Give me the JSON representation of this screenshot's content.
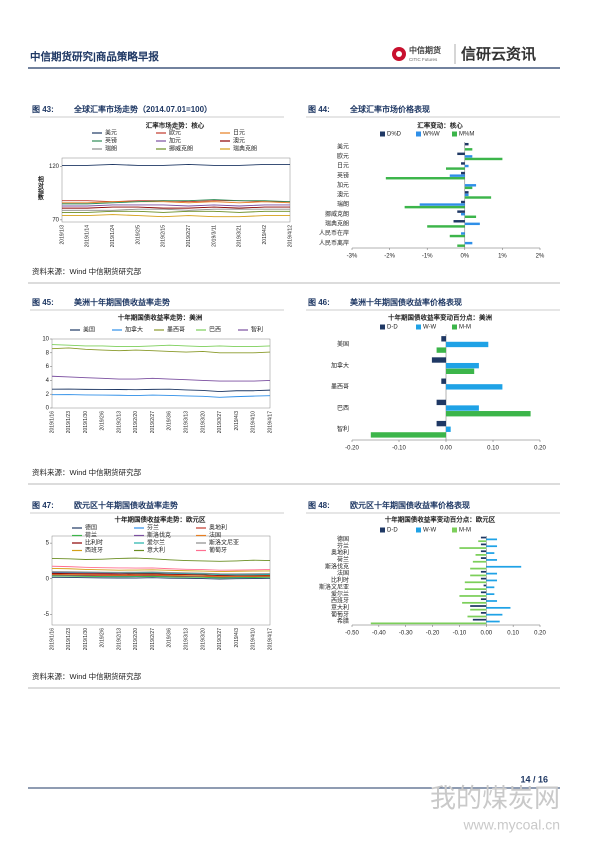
{
  "header": {
    "title": "中信期货研究|商品策略早报",
    "logo_cn": "中信期货",
    "logo_en": "CITIC Futures",
    "brand": "信研云资讯"
  },
  "figures": [
    {
      "label": "图 43:",
      "title": "全球汇率市场走势（2014.07.01=100）"
    },
    {
      "label": "图 44:",
      "title": "全球汇率市场价格表现"
    },
    {
      "label": "图 45:",
      "title": "美洲十年期国债收益率走势"
    },
    {
      "label": "图 46:",
      "title": "美洲十年期国债收益率价格表现"
    },
    {
      "label": "图 47:",
      "title": "欧元区十年期国债收益率走势"
    },
    {
      "label": "图 48:",
      "title": "欧元区十年期国债收益率价格表现"
    }
  ],
  "sources": [
    "资料来源：Wind 中信期货研究部",
    "资料来源：Wind 中信期货研究部",
    "资料来源：Wind 中信期货研究部"
  ],
  "chart_data": [
    {
      "type": "line",
      "title": "汇率市场走势：核心",
      "ylabel": "相对指数",
      "categories": [
        "2019/1/3",
        "2019/1/14",
        "2019/1/24",
        "2019/2/5",
        "2019/2/15",
        "2019/2/27",
        "2019/3/11",
        "2019/3/21",
        "2019/4/2",
        "2019/4/12"
      ],
      "ylim": [
        68,
        128
      ],
      "yticks": [
        70,
        120
      ],
      "series": [
        {
          "name": "美元",
          "color": "#1f3864",
          "values": [
            121,
            121,
            122,
            121,
            121,
            122,
            121,
            121,
            122,
            122
          ]
        },
        {
          "name": "欧元",
          "color": "#c0392b",
          "values": [
            88,
            88,
            87,
            88,
            88,
            87,
            88,
            88,
            87,
            87
          ]
        },
        {
          "name": "日元",
          "color": "#e67e22",
          "values": [
            86,
            86,
            87,
            87,
            87,
            86,
            87,
            86,
            87,
            86
          ]
        },
        {
          "name": "英镑",
          "color": "#2e8b57",
          "values": [
            85,
            85,
            86,
            87,
            88,
            88,
            89,
            88,
            88,
            87
          ]
        },
        {
          "name": "加元",
          "color": "#7b4fa0",
          "values": [
            83,
            83,
            84,
            84,
            84,
            83,
            84,
            83,
            84,
            84
          ]
        },
        {
          "name": "澳元",
          "color": "#8b0000",
          "values": [
            81,
            81,
            82,
            82,
            81,
            81,
            82,
            81,
            82,
            82
          ]
        },
        {
          "name": "瑞朗",
          "color": "#8c8c8c",
          "values": [
            79,
            79,
            79,
            80,
            80,
            79,
            80,
            80,
            80,
            80
          ]
        },
        {
          "name": "挪威克朗",
          "color": "#6b8e23",
          "values": [
            77,
            77,
            78,
            78,
            77,
            78,
            78,
            77,
            78,
            78
          ]
        },
        {
          "name": "瑞典克朗",
          "color": "#d4a017",
          "values": [
            74,
            74,
            75,
            74,
            73,
            74,
            73,
            73,
            74,
            74
          ]
        }
      ]
    },
    {
      "type": "hbar",
      "title": "汇率变动：核心",
      "categories": [
        "美元",
        "欧元",
        "日元",
        "英镑",
        "加元",
        "澳元",
        "瑞朗",
        "挪威克朗",
        "瑞典克朗",
        "人民币在岸",
        "人民币离岸"
      ],
      "xlim": [
        -3,
        2
      ],
      "xticks": [
        {
          "value": -3,
          "label": "-3%"
        },
        {
          "value": -2,
          "label": "-2%"
        },
        {
          "value": -1,
          "label": "-1%"
        },
        {
          "value": 0,
          "label": "0%"
        },
        {
          "value": 1,
          "label": "1%"
        },
        {
          "value": 2,
          "label": "2%"
        }
      ],
      "series": [
        {
          "name": "D%D",
          "color": "#1f3864",
          "values": [
            0.1,
            -0.2,
            -0.1,
            -0.1,
            0.0,
            0.1,
            -0.1,
            -0.2,
            -0.3,
            0.0,
            0.0
          ]
        },
        {
          "name": "W%W",
          "color": "#2f8fe8",
          "values": [
            0.0,
            0.2,
            0.1,
            -0.4,
            0.3,
            0.1,
            -1.2,
            -0.1,
            0.4,
            -0.1,
            0.2
          ]
        },
        {
          "name": "M%M",
          "color": "#3cb54a",
          "values": [
            0.2,
            1.0,
            -0.5,
            -2.1,
            0.2,
            0.7,
            -1.6,
            0.3,
            -1.0,
            -0.4,
            -0.2
          ]
        }
      ]
    },
    {
      "type": "line",
      "title": "十年期国债收益率走势：美洲",
      "categories": [
        "2019/1/16",
        "2019/1/23",
        "2019/1/30",
        "2019/2/6",
        "2019/2/13",
        "2019/2/20",
        "2019/2/27",
        "2019/3/6",
        "2019/3/13",
        "2019/3/20",
        "2019/3/27",
        "2019/4/3",
        "2019/4/10",
        "2019/4/17"
      ],
      "ylim": [
        0,
        10
      ],
      "yticks": [
        0,
        2,
        4,
        6,
        8,
        10
      ],
      "series": [
        {
          "name": "美国",
          "color": "#1f3864",
          "values": [
            2.72,
            2.74,
            2.7,
            2.69,
            2.68,
            2.65,
            2.7,
            2.72,
            2.62,
            2.54,
            2.38,
            2.5,
            2.5,
            2.59
          ]
        },
        {
          "name": "加拿大",
          "color": "#2f8fe8",
          "values": [
            1.93,
            1.95,
            1.9,
            1.88,
            1.85,
            1.8,
            1.88,
            1.82,
            1.75,
            1.7,
            1.55,
            1.65,
            1.72,
            1.78
          ]
        },
        {
          "name": "墨西哥",
          "color": "#8a9a2b",
          "values": [
            8.6,
            8.7,
            8.5,
            8.4,
            8.3,
            8.4,
            8.3,
            8.2,
            8.1,
            8.2,
            8.0,
            8.0,
            8.0,
            8.1
          ]
        },
        {
          "name": "巴西",
          "color": "#7ccf5a",
          "values": [
            9.2,
            9.1,
            9.0,
            9.0,
            8.9,
            8.9,
            9.0,
            9.1,
            9.0,
            8.9,
            9.0,
            8.9,
            8.9,
            9.0
          ]
        },
        {
          "name": "智利",
          "color": "#7b4fa0",
          "values": [
            4.6,
            4.5,
            4.4,
            4.3,
            4.2,
            4.2,
            4.3,
            4.2,
            4.1,
            4.0,
            3.9,
            3.9,
            3.9,
            4.0
          ]
        }
      ]
    },
    {
      "type": "hbar",
      "title": "十年期国债收益率变动百分点：美洲",
      "categories": [
        "美国",
        "加拿大",
        "墨西哥",
        "巴西",
        "智利"
      ],
      "xlim": [
        -0.2,
        0.2
      ],
      "xticks": [
        {
          "value": -0.2,
          "label": "-0.20"
        },
        {
          "value": -0.1,
          "label": "-0.10"
        },
        {
          "value": 0,
          "label": "0.00"
        },
        {
          "value": 0.1,
          "label": "0.10"
        },
        {
          "value": 0.2,
          "label": "0.20"
        }
      ],
      "series": [
        {
          "name": "D-D",
          "color": "#1f3864",
          "values": [
            -0.01,
            -0.03,
            -0.01,
            -0.02,
            -0.02
          ]
        },
        {
          "name": "W-W",
          "color": "#1fa2e6",
          "values": [
            0.09,
            0.07,
            0.12,
            0.07,
            0.01
          ]
        },
        {
          "name": "M-M",
          "color": "#3cb54a",
          "values": [
            -0.02,
            0.06,
            0.0,
            0.18,
            -0.16
          ]
        }
      ]
    },
    {
      "type": "line",
      "title": "十年期国债收益率走势：欧元区",
      "categories": [
        "2019/1/16",
        "2019/1/23",
        "2019/1/30",
        "2019/2/6",
        "2019/2/13",
        "2019/2/20",
        "2019/2/27",
        "2019/3/6",
        "2019/3/13",
        "2019/3/20",
        "2019/3/27",
        "2019/4/3",
        "2019/4/10",
        "2019/4/17"
      ],
      "ylim": [
        -6.5,
        6
      ],
      "yticks": [
        -5,
        0,
        5
      ],
      "series": [
        {
          "name": "德国",
          "color": "#1f3864",
          "values": [
            0.2,
            0.18,
            0.15,
            0.12,
            0.1,
            0.1,
            0.15,
            0.08,
            0.05,
            0.02,
            -0.05,
            0.0,
            0.02,
            0.05
          ]
        },
        {
          "name": "芬兰",
          "color": "#2f8fe8",
          "values": [
            0.45,
            0.42,
            0.4,
            0.35,
            0.33,
            0.35,
            0.38,
            0.3,
            0.28,
            0.25,
            0.18,
            0.2,
            0.22,
            0.25
          ]
        },
        {
          "name": "奥地利",
          "color": "#c0392b",
          "values": [
            0.55,
            0.52,
            0.48,
            0.45,
            0.42,
            0.45,
            0.48,
            0.4,
            0.36,
            0.33,
            0.25,
            0.28,
            0.3,
            0.33
          ]
        },
        {
          "name": "荷兰",
          "color": "#3cb54a",
          "values": [
            0.38,
            0.36,
            0.33,
            0.3,
            0.28,
            0.3,
            0.33,
            0.26,
            0.22,
            0.2,
            0.12,
            0.15,
            0.17,
            0.2
          ]
        },
        {
          "name": "斯洛伐克",
          "color": "#7b4fa0",
          "values": [
            0.85,
            0.88,
            0.85,
            0.82,
            0.8,
            0.78,
            0.8,
            0.75,
            0.72,
            0.7,
            0.62,
            0.6,
            0.62,
            0.65
          ]
        },
        {
          "name": "法国",
          "color": "#e67e22",
          "values": [
            0.65,
            0.62,
            0.58,
            0.55,
            0.52,
            0.55,
            0.58,
            0.5,
            0.45,
            0.4,
            0.32,
            0.35,
            0.38,
            0.4
          ]
        },
        {
          "name": "比利时",
          "color": "#8b0000",
          "values": [
            0.75,
            0.72,
            0.7,
            0.68,
            0.65,
            0.68,
            0.7,
            0.62,
            0.58,
            0.55,
            0.45,
            0.48,
            0.5,
            0.52
          ]
        },
        {
          "name": "爱尔兰",
          "color": "#20b2aa",
          "values": [
            0.95,
            0.92,
            0.9,
            0.88,
            0.85,
            0.82,
            0.85,
            0.78,
            0.72,
            0.68,
            0.58,
            0.55,
            0.55,
            0.6
          ]
        },
        {
          "name": "斯洛文尼亚",
          "color": "#8c8c8c",
          "values": [
            1.0,
            0.98,
            0.95,
            0.92,
            0.9,
            0.92,
            0.95,
            0.88,
            0.82,
            0.78,
            0.7,
            0.68,
            0.7,
            0.72
          ]
        },
        {
          "name": "西班牙",
          "color": "#d4a017",
          "values": [
            1.45,
            1.4,
            1.3,
            1.25,
            1.2,
            1.22,
            1.25,
            1.18,
            1.12,
            1.08,
            1.0,
            1.05,
            1.08,
            1.1
          ]
        },
        {
          "name": "意大利",
          "color": "#6b8e23",
          "values": [
            2.85,
            2.8,
            2.7,
            2.75,
            2.85,
            2.9,
            2.8,
            2.65,
            2.55,
            2.5,
            2.45,
            2.5,
            2.6,
            2.55
          ]
        },
        {
          "name": "葡萄牙",
          "color": "#ff6f91",
          "values": [
            1.75,
            1.7,
            1.6,
            1.55,
            1.52,
            1.5,
            1.52,
            1.4,
            1.32,
            1.28,
            1.2,
            1.22,
            1.25,
            1.3
          ]
        }
      ]
    },
    {
      "type": "hbar",
      "title": "十年期国债收益率变动百分点：欧元区",
      "categories": [
        "德国",
        "芬兰",
        "奥地利",
        "荷兰",
        "斯洛伐克",
        "法国",
        "比利时",
        "斯洛文尼亚",
        "爱尔兰",
        "西班牙",
        "意大利",
        "葡萄牙",
        "希腊"
      ],
      "xlim": [
        -0.5,
        0.2
      ],
      "xticks": [
        {
          "value": -0.5,
          "label": "-0.50"
        },
        {
          "value": -0.4,
          "label": "-0.40"
        },
        {
          "value": -0.3,
          "label": "-0.30"
        },
        {
          "value": -0.2,
          "label": "-0.20"
        },
        {
          "value": -0.1,
          "label": "-0.10"
        },
        {
          "value": 0,
          "label": "0.00"
        },
        {
          "value": 0.1,
          "label": "0.10"
        },
        {
          "value": 0.2,
          "label": "0.20"
        }
      ],
      "series": [
        {
          "name": "D-D",
          "color": "#1f3864",
          "values": [
            -0.02,
            -0.02,
            -0.02,
            -0.02,
            0.0,
            -0.02,
            -0.02,
            -0.01,
            -0.02,
            -0.02,
            -0.06,
            -0.02,
            -0.05
          ]
        },
        {
          "name": "W-W",
          "color": "#1fa2e6",
          "values": [
            0.04,
            0.04,
            0.03,
            0.04,
            0.13,
            0.04,
            0.04,
            0.03,
            0.03,
            0.04,
            0.09,
            0.06,
            0.05
          ]
        },
        {
          "name": "M-M",
          "color": "#7ccf5a",
          "values": [
            -0.03,
            -0.1,
            -0.04,
            -0.05,
            -0.06,
            -0.06,
            -0.08,
            -0.08,
            -0.1,
            -0.09,
            -0.06,
            -0.07,
            -0.43
          ]
        }
      ]
    }
  ],
  "footer": {
    "page": "14 / 16"
  },
  "watermark": {
    "cn": "我的煤炭网",
    "url": "www.mycoal.cn"
  }
}
